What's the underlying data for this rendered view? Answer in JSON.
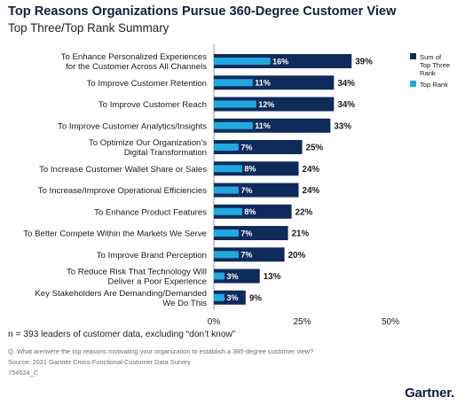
{
  "header": {
    "title": "Top Reasons Organizations Pursue 360-Degree Customer View",
    "subtitle": "Top Three/Top Rank Summary"
  },
  "chart_data": {
    "type": "bar",
    "orientation": "horizontal",
    "categories": [
      [
        "To Enhance Personalized Experiences",
        "for the Customer Across All Channels"
      ],
      [
        "To Improve Customer Retention"
      ],
      [
        "To Improve Customer Reach"
      ],
      [
        "To Improve Customer Analytics/Insights"
      ],
      [
        "To Optimize Our Organization's",
        "Digital Transformation"
      ],
      [
        "To Increase Customer Wallet Share or Sales"
      ],
      [
        "To Increase/Improve Operational Efficiencies"
      ],
      [
        "To Enhance Product Features"
      ],
      [
        "To Better Compete Within the Markets We Serve"
      ],
      [
        "To Improve Brand Perception"
      ],
      [
        "To Reduce Risk That Technology Will",
        "Deliver a Poor Experience"
      ],
      [
        "Key Stakeholders Are Demanding/Demanded",
        "We Do This"
      ]
    ],
    "series": [
      {
        "name": "Sum of Top Three Rank",
        "legend_lines": [
          "Sum of",
          "Top Three",
          "Rank"
        ],
        "color": "#0f2b5b",
        "values": [
          39,
          34,
          34,
          33,
          25,
          24,
          24,
          22,
          21,
          20,
          13,
          9
        ],
        "labels": [
          "39%",
          "34%",
          "34%",
          "33%",
          "25%",
          "24%",
          "24%",
          "22%",
          "21%",
          "20%",
          "13%",
          "9%"
        ]
      },
      {
        "name": "Top Rank",
        "legend_lines": [
          "Top Rank"
        ],
        "color": "#22a8e0",
        "values": [
          16,
          11,
          12,
          11,
          7,
          8,
          7,
          8,
          7,
          7,
          3,
          3
        ],
        "labels": [
          "16%",
          "11%",
          "12%",
          "11%",
          "7%",
          "8%",
          "7%",
          "8%",
          "7%",
          "7%",
          "3%",
          "3%"
        ]
      }
    ],
    "xlim": [
      0,
      50
    ],
    "xticks": [
      0,
      25,
      50
    ],
    "xtick_labels": [
      "0%",
      "25%",
      "50%"
    ],
    "grid": false,
    "legend_position": "top-right"
  },
  "footer": {
    "note": "n = 393 leaders of customer data, excluding “don’t know”",
    "question": "Q. What are/were the top reasons motivating your organization to establish a 360-degree customer view?",
    "source": "Source: 2021 Gartner Cross-Functional Customer Data Survey",
    "code": "754524_C",
    "logo": "Gartner."
  }
}
